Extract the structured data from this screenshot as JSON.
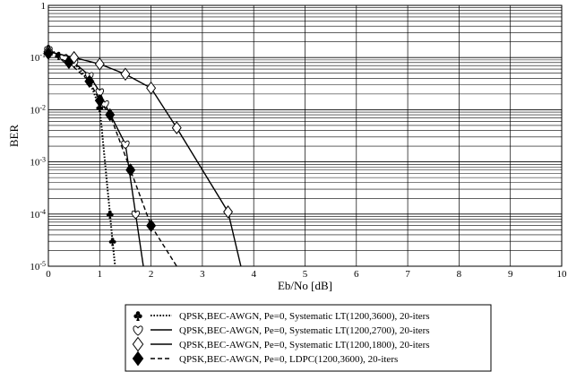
{
  "chart_data": {
    "type": "line",
    "title": "",
    "xlabel": "Eb/No [dB]",
    "ylabel": "BER",
    "x_scale": "linear",
    "y_scale": "log",
    "xlim": [
      0,
      10
    ],
    "ylim": [
      1e-05,
      1
    ],
    "grid": true,
    "legend_position": "bottom",
    "x_ticks": [
      0,
      1,
      2,
      3,
      4,
      5,
      6,
      7,
      8,
      9,
      10
    ],
    "y_ticks": [
      {
        "value": 1,
        "label": "1"
      },
      {
        "value": 0.1,
        "base": "10",
        "exp": "-1"
      },
      {
        "value": 0.01,
        "base": "10",
        "exp": "-2"
      },
      {
        "value": 0.001,
        "base": "10",
        "exp": "-3"
      },
      {
        "value": 0.0001,
        "base": "10",
        "exp": "-4"
      },
      {
        "value": 1e-05,
        "base": "10",
        "exp": "-5"
      }
    ],
    "series": [
      {
        "name": "QPSK,BEC-AWGN, Pe=0, Systematic LT(1200,3600), 20-iters",
        "marker": "club",
        "line_style": "dotted",
        "x": [
          0,
          0.2,
          0.5,
          0.8,
          1.0,
          1.2,
          1.25,
          1.3
        ],
        "y": [
          0.15,
          0.11,
          0.08,
          0.035,
          0.011,
          0.0001,
          3e-05,
          1e-05
        ]
      },
      {
        "name": "QPSK,BEC-AWGN, Pe=0, Systematic LT(1200,2700), 20-iters",
        "marker": "heart",
        "line_style": "solid",
        "x": [
          0,
          0.3,
          0.5,
          0.8,
          1.0,
          1.1,
          1.5,
          1.7,
          1.85
        ],
        "y": [
          0.14,
          0.1,
          0.08,
          0.045,
          0.022,
          0.013,
          0.0022,
          0.0001,
          1e-05
        ]
      },
      {
        "name": "QPSK,BEC-AWGN, Pe=0, Systematic LT(1200,1800), 20-iters",
        "marker": "diamond-open",
        "line_style": "solid",
        "x": [
          0,
          0.5,
          1.0,
          1.5,
          2.0,
          2.5,
          3.5,
          3.75
        ],
        "y": [
          0.13,
          0.1,
          0.075,
          0.048,
          0.026,
          0.0045,
          0.00011,
          1e-05
        ]
      },
      {
        "name": "QPSK,BEC-AWGN, Pe=0, LDPC(1200,3600), 20-iters",
        "marker": "diamond-filled",
        "line_style": "dashed",
        "x": [
          0,
          0.4,
          0.8,
          1.0,
          1.2,
          1.6,
          2.0,
          2.5
        ],
        "y": [
          0.12,
          0.08,
          0.035,
          0.015,
          0.008,
          0.0007,
          6e-05,
          1e-05
        ]
      }
    ]
  }
}
